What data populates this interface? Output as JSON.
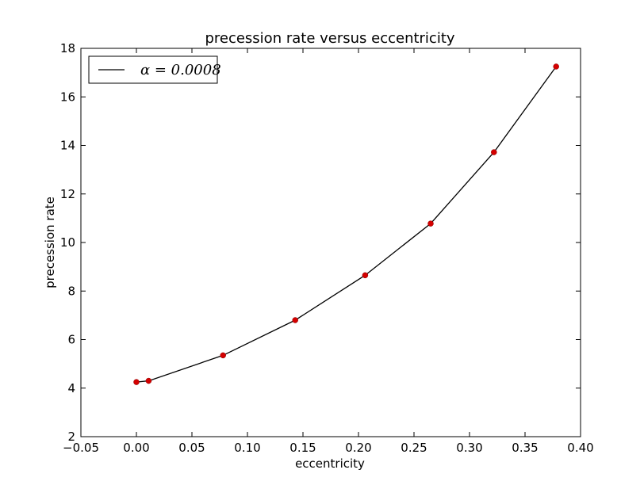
{
  "chart_data": {
    "type": "line",
    "title": "precession rate versus eccentricity",
    "xlabel": "eccentricity",
    "ylabel": "precession rate",
    "xlim": [
      -0.05,
      0.4
    ],
    "ylim": [
      2,
      18
    ],
    "x_ticks": [
      -0.05,
      0.0,
      0.05,
      0.1,
      0.15,
      0.2,
      0.25,
      0.3,
      0.35,
      0.4
    ],
    "x_tick_labels": [
      "−0.05",
      "0.00",
      "0.05",
      "0.10",
      "0.15",
      "0.20",
      "0.25",
      "0.30",
      "0.35",
      "0.40"
    ],
    "y_ticks": [
      2,
      4,
      6,
      8,
      10,
      12,
      14,
      16,
      18
    ],
    "y_tick_labels": [
      "2",
      "4",
      "6",
      "8",
      "10",
      "12",
      "14",
      "16",
      "18"
    ],
    "grid": false,
    "legend": {
      "placement": "top-left",
      "entries": [
        "α = 0.0008"
      ]
    },
    "series": [
      {
        "name": "α = 0.0008",
        "line_color": "#000000",
        "marker_color": "#d40000",
        "x": [
          0.0,
          0.011,
          0.078,
          0.143,
          0.206,
          0.265,
          0.322,
          0.378
        ],
        "y": [
          4.25,
          4.3,
          5.35,
          6.8,
          8.65,
          10.78,
          13.72,
          17.25
        ]
      }
    ]
  }
}
